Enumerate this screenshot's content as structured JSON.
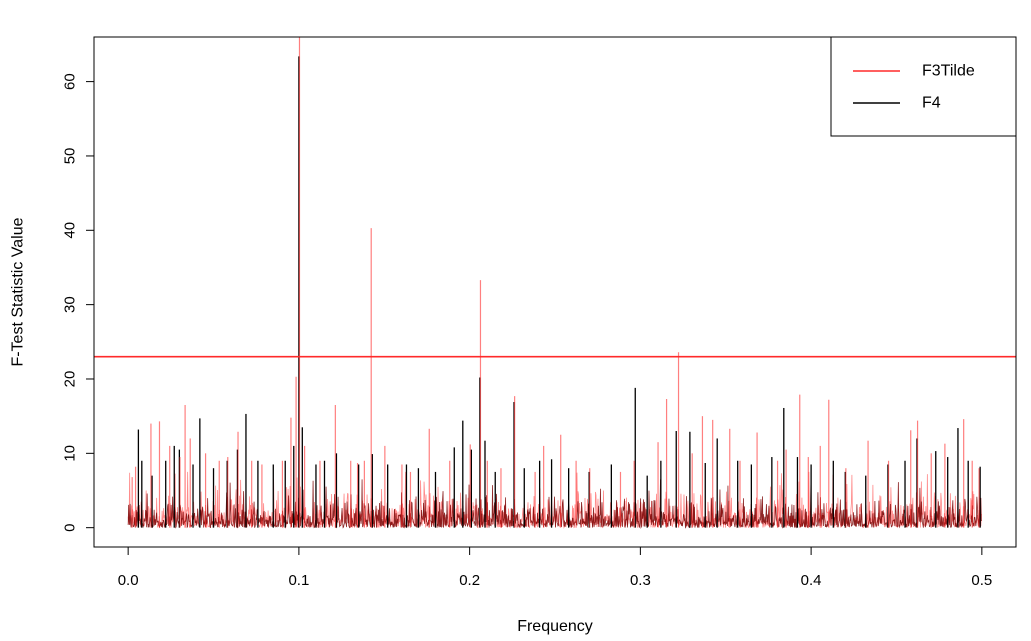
{
  "chart_data": {
    "type": "line",
    "title": "",
    "xlabel": "Frequency",
    "ylabel": "F-Test Statistic Value",
    "xlim": [
      -0.02,
      0.52
    ],
    "ylim": [
      -2.6,
      66.0
    ],
    "x_ticks": [
      0.0,
      0.1,
      0.2,
      0.3,
      0.4,
      0.5
    ],
    "x_tick_labels": [
      "0.0",
      "0.1",
      "0.2",
      "0.3",
      "0.4",
      "0.5"
    ],
    "y_ticks": [
      0,
      10,
      20,
      30,
      40,
      50,
      60
    ],
    "y_tick_labels": [
      "0",
      "10",
      "20",
      "30",
      "40",
      "50",
      "60"
    ],
    "grid": false,
    "legend_position": "top-right",
    "hline": {
      "y": 23.0,
      "color": "#ff2a2a"
    },
    "series": [
      {
        "name": "F3Tilde",
        "color": "#ff2a2a",
        "peaks": [
          [
            0.002,
            6.8
          ],
          [
            0.004,
            8.2
          ],
          [
            0.013,
            14.0
          ],
          [
            0.018,
            14.3
          ],
          [
            0.024,
            11.0
          ],
          [
            0.03,
            9.5
          ],
          [
            0.033,
            16.5
          ],
          [
            0.036,
            12.0
          ],
          [
            0.045,
            10.0
          ],
          [
            0.053,
            9.0
          ],
          [
            0.058,
            9.5
          ],
          [
            0.064,
            12.9
          ],
          [
            0.072,
            9.0
          ],
          [
            0.078,
            8.5
          ],
          [
            0.09,
            9.0
          ],
          [
            0.095,
            14.8
          ],
          [
            0.098,
            20.3
          ],
          [
            0.1,
            66.0
          ],
          [
            0.103,
            11.0
          ],
          [
            0.112,
            9.0
          ],
          [
            0.121,
            16.5
          ],
          [
            0.13,
            9.0
          ],
          [
            0.134,
            8.7
          ],
          [
            0.138,
            9.0
          ],
          [
            0.142,
            40.3
          ],
          [
            0.15,
            11.0
          ],
          [
            0.16,
            8.5
          ],
          [
            0.165,
            7.5
          ],
          [
            0.176,
            13.3
          ],
          [
            0.188,
            9.0
          ],
          [
            0.2,
            11.2
          ],
          [
            0.206,
            33.3
          ],
          [
            0.21,
            9.0
          ],
          [
            0.218,
            8.0
          ],
          [
            0.226,
            17.7
          ],
          [
            0.238,
            7.5
          ],
          [
            0.243,
            11.0
          ],
          [
            0.253,
            12.5
          ],
          [
            0.262,
            9.0
          ],
          [
            0.27,
            8.0
          ],
          [
            0.288,
            7.5
          ],
          [
            0.296,
            9.0
          ],
          [
            0.31,
            11.5
          ],
          [
            0.315,
            17.3
          ],
          [
            0.322,
            23.6
          ],
          [
            0.33,
            10.0
          ],
          [
            0.336,
            15.0
          ],
          [
            0.342,
            14.5
          ],
          [
            0.352,
            13.3
          ],
          [
            0.358,
            9.0
          ],
          [
            0.368,
            12.8
          ],
          [
            0.38,
            9.0
          ],
          [
            0.385,
            10.5
          ],
          [
            0.393,
            17.9
          ],
          [
            0.398,
            9.5
          ],
          [
            0.405,
            11.0
          ],
          [
            0.41,
            17.2
          ],
          [
            0.42,
            8.0
          ],
          [
            0.433,
            11.7
          ],
          [
            0.445,
            9.0
          ],
          [
            0.458,
            13.1
          ],
          [
            0.462,
            14.4
          ],
          [
            0.47,
            10.0
          ],
          [
            0.478,
            11.3
          ],
          [
            0.489,
            14.6
          ],
          [
            0.494,
            9.0
          ],
          [
            0.498,
            8.0
          ]
        ]
      },
      {
        "name": "F4",
        "color": "#000000",
        "peaks": [
          [
            0.006,
            13.2
          ],
          [
            0.008,
            9.0
          ],
          [
            0.014,
            7.0
          ],
          [
            0.022,
            9.0
          ],
          [
            0.027,
            11.0
          ],
          [
            0.03,
            10.5
          ],
          [
            0.038,
            8.5
          ],
          [
            0.042,
            14.7
          ],
          [
            0.05,
            8.0
          ],
          [
            0.058,
            9.0
          ],
          [
            0.064,
            10.5
          ],
          [
            0.069,
            15.3
          ],
          [
            0.076,
            9.0
          ],
          [
            0.085,
            8.5
          ],
          [
            0.092,
            9.0
          ],
          [
            0.097,
            11.0
          ],
          [
            0.1,
            63.4
          ],
          [
            0.102,
            13.5
          ],
          [
            0.11,
            8.5
          ],
          [
            0.115,
            9.0
          ],
          [
            0.122,
            10.0
          ],
          [
            0.135,
            8.5
          ],
          [
            0.143,
            9.9
          ],
          [
            0.152,
            8.5
          ],
          [
            0.163,
            8.5
          ],
          [
            0.17,
            8.0
          ],
          [
            0.18,
            7.5
          ],
          [
            0.191,
            10.8
          ],
          [
            0.196,
            14.4
          ],
          [
            0.201,
            10.5
          ],
          [
            0.206,
            20.2
          ],
          [
            0.209,
            11.7
          ],
          [
            0.215,
            7.5
          ],
          [
            0.226,
            16.9
          ],
          [
            0.232,
            8.0
          ],
          [
            0.241,
            9.0
          ],
          [
            0.248,
            9.2
          ],
          [
            0.258,
            8.0
          ],
          [
            0.27,
            7.5
          ],
          [
            0.283,
            8.5
          ],
          [
            0.297,
            18.8
          ],
          [
            0.304,
            7.0
          ],
          [
            0.312,
            9.0
          ],
          [
            0.321,
            13.0
          ],
          [
            0.329,
            12.9
          ],
          [
            0.338,
            8.7
          ],
          [
            0.345,
            12.0
          ],
          [
            0.357,
            9.0
          ],
          [
            0.365,
            8.5
          ],
          [
            0.377,
            9.5
          ],
          [
            0.384,
            16.1
          ],
          [
            0.392,
            9.5
          ],
          [
            0.4,
            8.5
          ],
          [
            0.413,
            9.0
          ],
          [
            0.42,
            7.5
          ],
          [
            0.432,
            7.0
          ],
          [
            0.445,
            8.5
          ],
          [
            0.455,
            9.0
          ],
          [
            0.462,
            12.0
          ],
          [
            0.473,
            10.3
          ],
          [
            0.48,
            9.5
          ],
          [
            0.486,
            13.4
          ],
          [
            0.492,
            9.0
          ],
          [
            0.499,
            8.2
          ]
        ]
      }
    ],
    "legend": {
      "entries": [
        {
          "label": "F3Tilde",
          "color": "#ff2a2a"
        },
        {
          "label": "F4",
          "color": "#000000"
        }
      ]
    }
  }
}
